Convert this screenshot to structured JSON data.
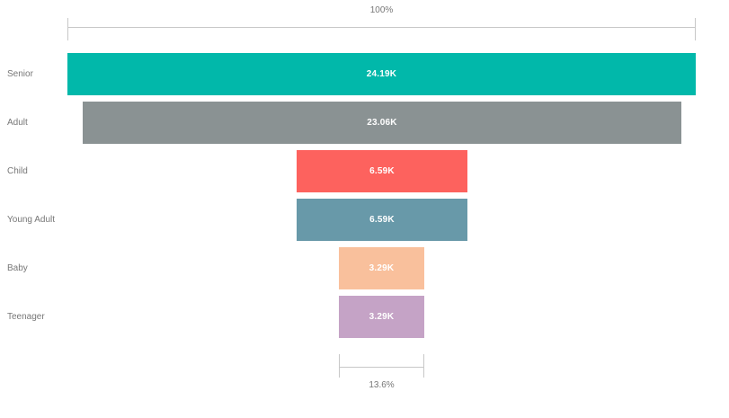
{
  "chart_data": {
    "type": "funnel",
    "title": "",
    "categories": [
      "Senior",
      "Adult",
      "Child",
      "Young Adult",
      "Baby",
      "Teenager"
    ],
    "values": [
      24190,
      23060,
      6590,
      6590,
      3290,
      3290
    ],
    "value_labels": [
      "24.19K",
      "23.06K",
      "6.59K",
      "6.59K",
      "3.29K",
      "3.29K"
    ],
    "bar_colors": [
      "#01B8AA",
      "#8A9293",
      "#FD625E",
      "#6899A9",
      "#F9C09C",
      "#C5A3C6"
    ],
    "top_percent_label": "100%",
    "bottom_percent_label": "13.6%",
    "label_color": "#777777",
    "value_label_color": "#FFFFFF",
    "bracket_line_color": "#C8C8C8",
    "background_color": "#FFFFFF",
    "legend": "off",
    "grid": "off"
  }
}
